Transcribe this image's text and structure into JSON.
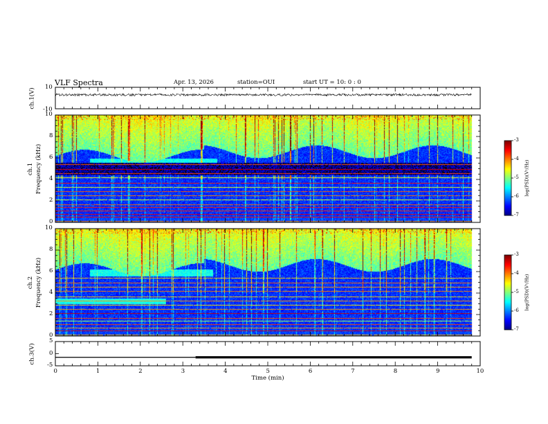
{
  "header": {
    "title": "VLF Spectra",
    "date": "Apr. 13, 2026",
    "station": "station=OUI",
    "start": "start  UT =   10: 0  : 0"
  },
  "chart_data": [
    {
      "type": "line",
      "name": "ch1-waveform",
      "ylabel": "ch.1(V)",
      "ylim": [
        -10,
        10
      ],
      "y_tick_labels": [
        "10",
        "-10"
      ],
      "x": [
        0,
        9.8
      ],
      "values": [
        3,
        3
      ]
    },
    {
      "type": "heatmap",
      "name": "ch1-spectrogram",
      "ylabel_channel": "ch.1",
      "ylabel": "Frequency  (kHz)",
      "ylim": [
        0,
        10
      ],
      "y_tick_labels": [
        "0",
        "2",
        "4",
        "6",
        "8",
        "10"
      ],
      "colorbar": {
        "label": "log(PSD)(V²/Hz)",
        "range": [
          -7,
          -3
        ],
        "tick_labels": [
          "-3",
          "-4",
          "-5",
          "-6",
          "-7"
        ]
      },
      "emission_band_khz": [
        5.6,
        6.0
      ]
    },
    {
      "type": "heatmap",
      "name": "ch2-spectrogram",
      "ylabel_channel": "ch.2",
      "ylabel": "Frequency  (kHz)",
      "ylim": [
        0,
        10
      ],
      "y_tick_labels": [
        "0",
        "2",
        "4",
        "6",
        "8",
        "10"
      ],
      "colorbar": {
        "label": "log(PSD)(V²/Hz)",
        "range": [
          -7,
          -3
        ],
        "tick_labels": [
          "-3",
          "-4",
          "-5",
          "-6",
          "-7"
        ]
      },
      "emission_band_khz": [
        5.6,
        6.2
      ],
      "secondary_band_khz": [
        3.0,
        3.5
      ]
    },
    {
      "type": "line",
      "name": "ch3-level",
      "ylabel": "ch.3(V)",
      "ylim": [
        -5,
        5
      ],
      "y_tick_labels": [
        "5",
        "0",
        "-5"
      ],
      "x": [
        0,
        3.3,
        3.3,
        9.8
      ],
      "values": [
        -1.5,
        -1.5,
        -1.5,
        -1.5
      ]
    }
  ],
  "x_axis": {
    "label": "Time  (min)",
    "range": [
      0,
      10
    ],
    "tick_labels": [
      "0",
      "1",
      "2",
      "3",
      "4",
      "5",
      "6",
      "7",
      "8",
      "9",
      "10"
    ]
  }
}
